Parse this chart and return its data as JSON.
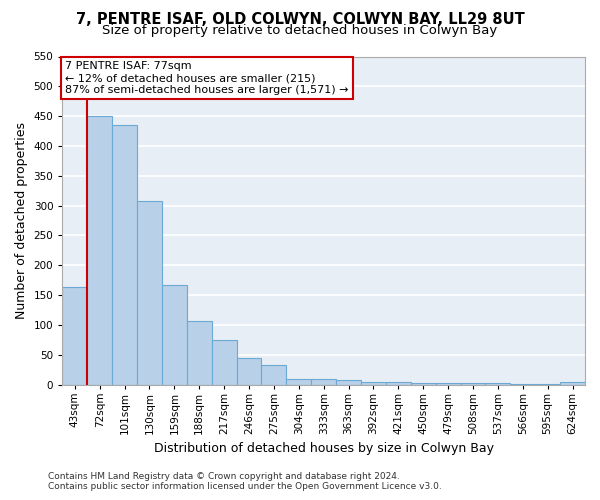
{
  "title_line1": "7, PENTRE ISAF, OLD COLWYN, COLWYN BAY, LL29 8UT",
  "title_line2": "Size of property relative to detached houses in Colwyn Bay",
  "xlabel": "Distribution of detached houses by size in Colwyn Bay",
  "ylabel": "Number of detached properties",
  "footer_line1": "Contains HM Land Registry data © Crown copyright and database right 2024.",
  "footer_line2": "Contains public sector information licensed under the Open Government Licence v3.0.",
  "categories": [
    "43sqm",
    "72sqm",
    "101sqm",
    "130sqm",
    "159sqm",
    "188sqm",
    "217sqm",
    "246sqm",
    "275sqm",
    "304sqm",
    "333sqm",
    "363sqm",
    "392sqm",
    "421sqm",
    "450sqm",
    "479sqm",
    "508sqm",
    "537sqm",
    "566sqm",
    "595sqm",
    "624sqm"
  ],
  "values": [
    163,
    450,
    435,
    307,
    167,
    106,
    74,
    45,
    33,
    10,
    10,
    8,
    5,
    5,
    3,
    2,
    2,
    2,
    1,
    1,
    5
  ],
  "bar_color": "#b8d0e8",
  "bar_edge_color": "#6aaad4",
  "background_color": "#e8eef5",
  "grid_color": "#ffffff",
  "ylim": [
    0,
    550
  ],
  "yticks": [
    0,
    50,
    100,
    150,
    200,
    250,
    300,
    350,
    400,
    450,
    500,
    550
  ],
  "property_label": "7 PENTRE ISAF: 77sqm",
  "annotation_line1": "← 12% of detached houses are smaller (215)",
  "annotation_line2": "87% of semi-detached houses are larger (1,571) →",
  "vline_x": 0.5,
  "vline_color": "#cc0000",
  "annotation_box_color": "#cc0000",
  "title_fontsize": 10.5,
  "subtitle_fontsize": 9.5,
  "axis_label_fontsize": 9,
  "tick_fontsize": 7.5,
  "annotation_fontsize": 8,
  "footer_fontsize": 6.5
}
